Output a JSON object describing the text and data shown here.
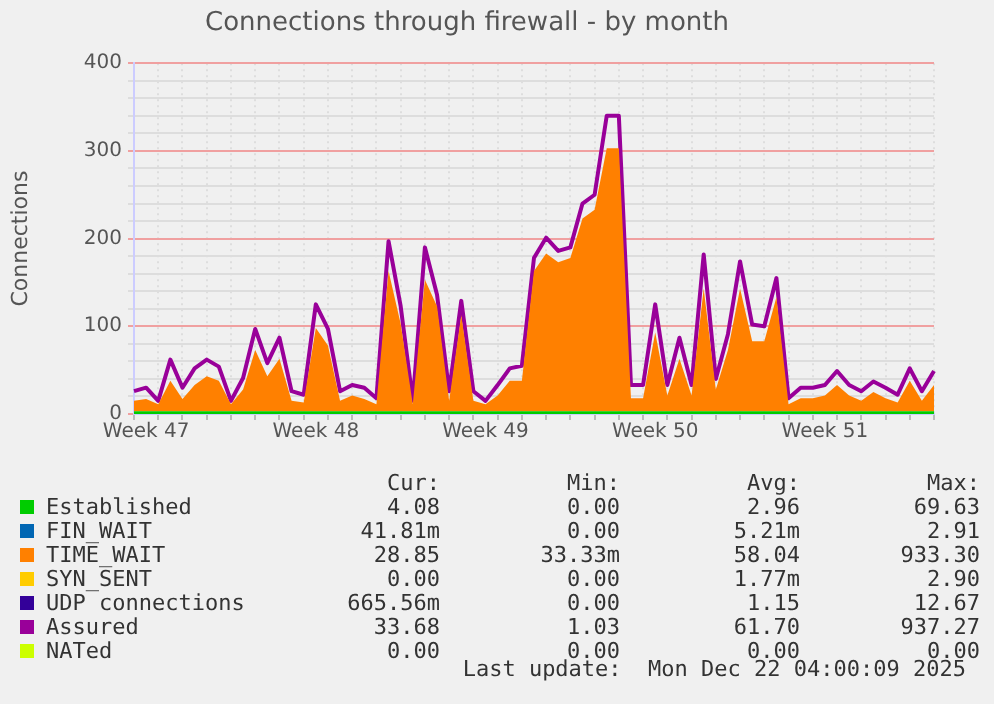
{
  "chart_data": {
    "type": "area",
    "title": "Connections through firewall - by month",
    "ylabel": "Connections",
    "stacked": true,
    "grid": true,
    "legend": "bottom",
    "marker": "none",
    "categories": [
      null,
      "Week 47",
      null,
      null,
      null,
      null,
      null,
      null,
      null,
      null,
      null,
      null,
      null,
      null,
      null,
      "Week 48",
      null,
      null,
      null,
      null,
      null,
      null,
      null,
      null,
      null,
      null,
      null,
      null,
      null,
      "Week 49",
      null,
      null,
      null,
      null,
      null,
      null,
      null,
      null,
      null,
      null,
      null,
      null,
      null,
      "Week 50",
      null,
      null,
      null,
      null,
      null,
      null,
      null,
      null,
      null,
      null,
      null,
      null,
      null,
      "Week 51",
      null,
      null,
      null,
      null,
      null,
      null,
      null,
      null,
      null
    ],
    "ylim": [
      0,
      400
    ],
    "yticks": [
      0,
      {
        "value": 20,
        "label": null
      },
      {
        "value": 40,
        "label": null
      },
      {
        "value": 60,
        "label": null
      },
      {
        "value": 80,
        "label": null
      },
      100,
      {
        "value": 120,
        "label": null
      },
      {
        "value": 140,
        "label": null
      },
      {
        "value": 160,
        "label": null
      },
      {
        "value": 180,
        "label": null
      },
      200,
      {
        "value": 220,
        "label": null
      },
      {
        "value": 240,
        "label": null
      },
      {
        "value": 260,
        "label": null
      },
      {
        "value": 280,
        "label": null
      },
      300,
      {
        "value": 320,
        "label": null
      },
      {
        "value": 340,
        "label": null
      },
      {
        "value": 360,
        "label": null
      },
      {
        "value": 380,
        "label": null
      },
      400
    ],
    "series": [
      {
        "name": "Established",
        "color": "#00cc00",
        "values": [
          3,
          3,
          3,
          3,
          3,
          3,
          3,
          3,
          3,
          3,
          3,
          3,
          3,
          3,
          3,
          3,
          3,
          3,
          3,
          3,
          3,
          3,
          3,
          3,
          3,
          3,
          3,
          3,
          3,
          3,
          3,
          3,
          3,
          3,
          3,
          3,
          3,
          3,
          3,
          3,
          3,
          3,
          3,
          3,
          3,
          3,
          3,
          3,
          3,
          3,
          3,
          3,
          3,
          3,
          3,
          3,
          3,
          3,
          3,
          3,
          3,
          3,
          3,
          3,
          3,
          3,
          3
        ]
      },
      {
        "name": "FIN_WAIT",
        "color": "#0066b3",
        "values": [
          null,
          null,
          null,
          null,
          null,
          null,
          null,
          null,
          null,
          null,
          null,
          null,
          null,
          null,
          null,
          null,
          null,
          null,
          null,
          null,
          null,
          null,
          null,
          null,
          null,
          null,
          null,
          null,
          null,
          null,
          null,
          null,
          null,
          null,
          null,
          null,
          null,
          null,
          null,
          null,
          null,
          null,
          null,
          null,
          null,
          null,
          null,
          null,
          null,
          null,
          null,
          null,
          null,
          null,
          null,
          null,
          null,
          null,
          null,
          null,
          null,
          null,
          null,
          null,
          null,
          null,
          null
        ]
      },
      {
        "name": "TIME_WAIT",
        "color": "#ff8000",
        "values": [
          12,
          14,
          8,
          35,
          14,
          30,
          40,
          35,
          8,
          25,
          70,
          40,
          60,
          12,
          10,
          95,
          75,
          12,
          18,
          14,
          8,
          160,
          100,
          8,
          150,
          120,
          12,
          110,
          12,
          8,
          18,
          35,
          35,
          160,
          180,
          170,
          175,
          220,
          230,
          300,
          300,
          15,
          15,
          90,
          18,
          60,
          18,
          140,
          25,
          70,
          140,
          80,
          80,
          130,
          8,
          15,
          15,
          18,
          30,
          18,
          12,
          22,
          15,
          10,
          35,
          12,
          30
        ]
      },
      {
        "name": "SYN_SENT",
        "color": "#ffcc00",
        "values": [
          null,
          null,
          null,
          null,
          null,
          null,
          null,
          null,
          null,
          null,
          null,
          null,
          null,
          null,
          null,
          null,
          null,
          null,
          null,
          null,
          null,
          null,
          null,
          null,
          null,
          null,
          null,
          null,
          null,
          null,
          null,
          null,
          null,
          null,
          null,
          null,
          null,
          null,
          null,
          null,
          null,
          null,
          null,
          null,
          null,
          null,
          null,
          null,
          null,
          null,
          null,
          null,
          null,
          null,
          null,
          null,
          null,
          null,
          null,
          null,
          null,
          null,
          null,
          null,
          null,
          null,
          null
        ]
      },
      {
        "name": "UDP connections",
        "color": "#330099",
        "values": [
          null,
          null,
          null,
          null,
          null,
          null,
          null,
          null,
          null,
          null,
          null,
          null,
          null,
          null,
          null,
          null,
          null,
          null,
          null,
          null,
          null,
          null,
          null,
          null,
          null,
          null,
          null,
          null,
          null,
          null,
          null,
          null,
          null,
          null,
          null,
          null,
          null,
          null,
          null,
          null,
          null,
          null,
          null,
          null,
          null,
          null,
          null,
          null,
          null,
          null,
          null,
          null,
          null,
          null,
          null,
          null,
          null,
          null,
          null,
          null,
          null,
          null,
          null,
          null,
          null,
          null,
          null
        ]
      },
      {
        "name": "Assured",
        "color": "#990099",
        "type": "line",
        "values": [
          26,
          30,
          15,
          62,
          30,
          52,
          62,
          54,
          15,
          41,
          97,
          58,
          87,
          26,
          22,
          125,
          97,
          26,
          33,
          30,
          18,
          197,
          123,
          15,
          190,
          136,
          26,
          129,
          26,
          15,
          33,
          52,
          55,
          178,
          201,
          186,
          190,
          240,
          250,
          340,
          340,
          33,
          33,
          125,
          33,
          87,
          33,
          182,
          40,
          91,
          174,
          102,
          100,
          155,
          18,
          30,
          30,
          33,
          49,
          33,
          26,
          37,
          30,
          22,
          52,
          26,
          49
        ]
      },
      {
        "name": "NATed",
        "color": "#ccff00",
        "type": "line",
        "values": [
          null,
          null,
          null,
          null,
          null,
          null,
          null,
          null,
          null,
          null,
          null,
          null,
          null,
          null,
          null,
          null,
          null,
          null,
          null,
          null,
          null,
          null,
          null,
          null,
          null,
          null,
          null,
          null,
          null,
          null,
          null,
          null,
          null,
          null,
          null,
          null,
          null,
          null,
          null,
          null,
          null,
          null,
          null,
          null,
          null,
          null,
          null,
          null,
          null,
          null,
          null,
          null,
          null,
          null,
          null,
          null,
          null,
          null,
          null,
          null,
          null,
          null,
          null,
          null,
          null,
          null,
          null
        ]
      }
    ],
    "annotations": [
      "Cur:",
      "Min:",
      "Avg:",
      "Max:",
      "4.08",
      "0.00",
      "2.96",
      "69.63",
      "41.81m",
      "0.00",
      "5.21m",
      "2.91",
      "28.85",
      "33.33m",
      "58.04",
      "933.30",
      "0.00",
      "0.00",
      "1.77m",
      "2.90",
      "665.56m",
      "0.00",
      "1.15",
      "12.67",
      "33.68",
      "1.03",
      "61.70",
      "937.27",
      "0.00",
      "0.00",
      "0.00",
      "0.00",
      "Last update:  Mon Dec 22 04:00:09 2025"
    ]
  }
}
